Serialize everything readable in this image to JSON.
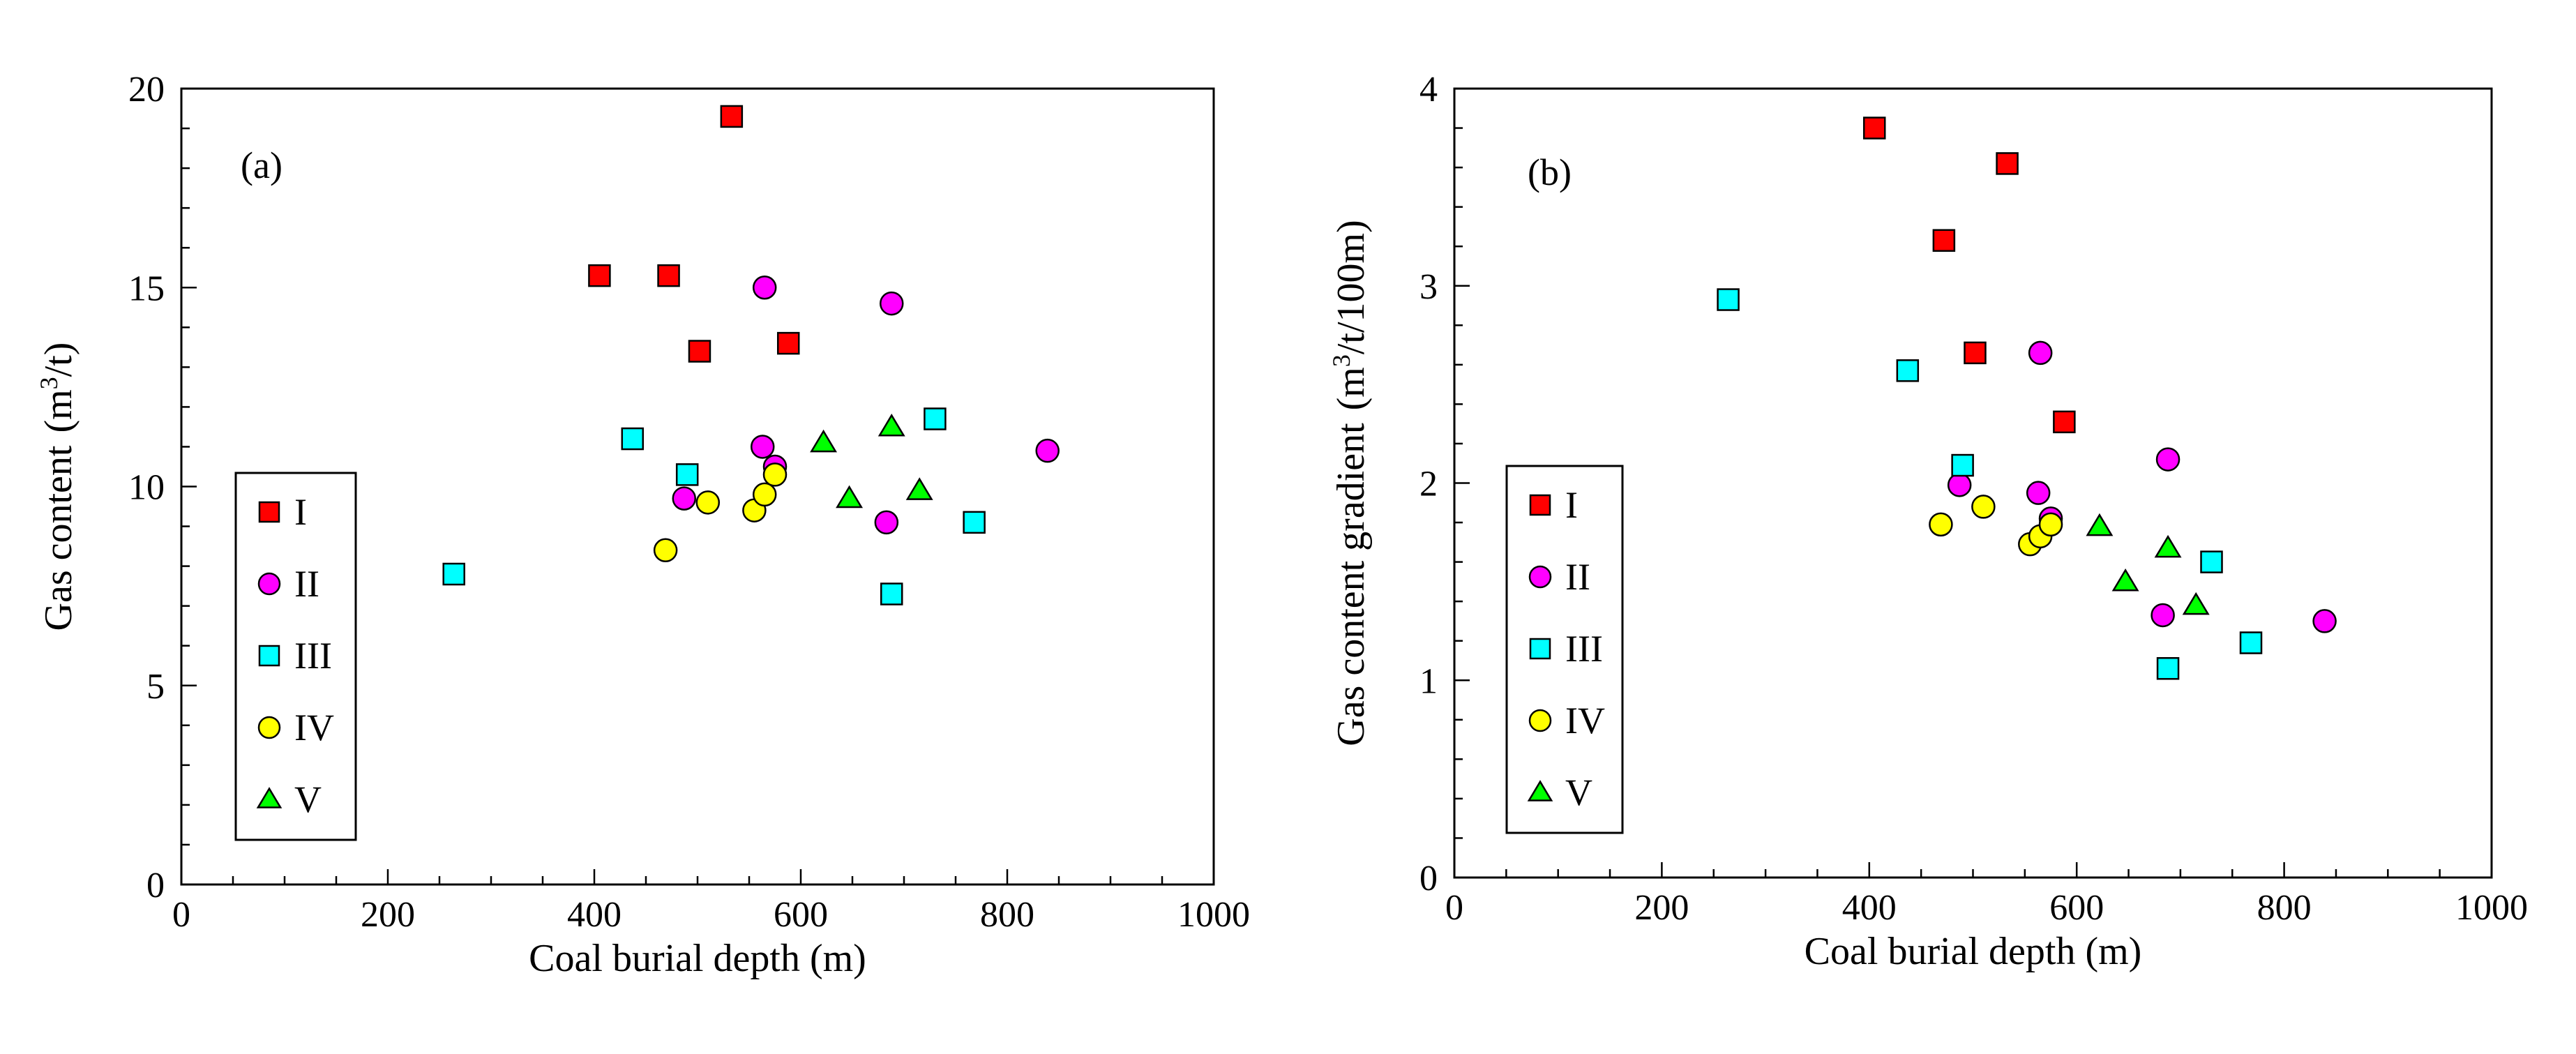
{
  "chart_data": [
    {
      "type": "scatter",
      "panel_label": "(a)",
      "xlabel": "Coal burial depth (m)",
      "ylabel": "Gas content",
      "ylabel_unit": {
        "open": "(m",
        "sup": "3",
        "close": "/t)"
      },
      "xlim": [
        0,
        1000
      ],
      "ylim": [
        0,
        20
      ],
      "x_ticks": [
        "0",
        "200",
        "400",
        "600",
        "800",
        "1000"
      ],
      "y_ticks": [
        "0",
        "5",
        "10",
        "15",
        "20"
      ],
      "legend_position": "lower-left",
      "series": [
        {
          "name": "I",
          "marker": "square",
          "color": "#ff0000",
          "points": [
            [
              405,
              15.3
            ],
            [
              472,
              15.3
            ],
            [
              502,
              13.4
            ],
            [
              533,
              19.3
            ],
            [
              588,
              13.6
            ]
          ]
        },
        {
          "name": "II",
          "marker": "circle",
          "color": "#ff00ff",
          "points": [
            [
              487,
              9.7
            ],
            [
              563,
              11.0
            ],
            [
              565,
              15.0
            ],
            [
              575,
              10.5
            ],
            [
              683,
              9.1
            ],
            [
              688,
              14.6
            ],
            [
              839,
              10.9
            ]
          ]
        },
        {
          "name": "III",
          "marker": "square",
          "color": "#00ffff",
          "points": [
            [
              264,
              7.8
            ],
            [
              437,
              11.2
            ],
            [
              490,
              10.3
            ],
            [
              688,
              7.3
            ],
            [
              730,
              11.7
            ],
            [
              768,
              9.1
            ]
          ]
        },
        {
          "name": "IV",
          "marker": "circle",
          "color": "#ffff00",
          "points": [
            [
              469,
              8.4
            ],
            [
              510,
              9.6
            ],
            [
              555,
              9.4
            ],
            [
              565,
              9.8
            ],
            [
              575,
              10.3
            ]
          ]
        },
        {
          "name": "V",
          "marker": "triangle",
          "color": "#00ff00",
          "points": [
            [
              622,
              11.1
            ],
            [
              647,
              9.7
            ],
            [
              688,
              11.5
            ],
            [
              715,
              9.9
            ]
          ]
        }
      ]
    },
    {
      "type": "scatter",
      "panel_label": "(b)",
      "xlabel": "Coal burial depth (m)",
      "ylabel": "Gas content  gradient",
      "ylabel_unit": {
        "open": "(m",
        "sup": "3",
        "close": "/t/100m)"
      },
      "xlim": [
        0,
        1000
      ],
      "ylim": [
        0,
        4
      ],
      "x_ticks": [
        "0",
        "200",
        "400",
        "600",
        "800",
        "1000"
      ],
      "y_ticks": [
        "0",
        "1",
        "2",
        "3",
        "4"
      ],
      "legend_position": "lower-left",
      "series": [
        {
          "name": "I",
          "marker": "square",
          "color": "#ff0000",
          "points": [
            [
              405,
              3.8
            ],
            [
              472,
              3.23
            ],
            [
              502,
              2.66
            ],
            [
              533,
              3.62
            ],
            [
              588,
              2.31
            ]
          ]
        },
        {
          "name": "II",
          "marker": "circle",
          "color": "#ff00ff",
          "points": [
            [
              487,
              1.99
            ],
            [
              563,
              1.95
            ],
            [
              565,
              2.66
            ],
            [
              575,
              1.82
            ],
            [
              683,
              1.33
            ],
            [
              688,
              2.12
            ],
            [
              839,
              1.3
            ]
          ]
        },
        {
          "name": "III",
          "marker": "square",
          "color": "#00ffff",
          "points": [
            [
              264,
              2.93
            ],
            [
              437,
              2.57
            ],
            [
              490,
              2.09
            ],
            [
              688,
              1.06
            ],
            [
              730,
              1.6
            ],
            [
              768,
              1.19
            ]
          ]
        },
        {
          "name": "IV",
          "marker": "circle",
          "color": "#ffff00",
          "points": [
            [
              469,
              1.79
            ],
            [
              510,
              1.88
            ],
            [
              555,
              1.69
            ],
            [
              565,
              1.73
            ],
            [
              575,
              1.79
            ]
          ]
        },
        {
          "name": "V",
          "marker": "triangle",
          "color": "#00ff00",
          "points": [
            [
              622,
              1.78
            ],
            [
              647,
              1.5
            ],
            [
              688,
              1.67
            ],
            [
              715,
              1.38
            ]
          ]
        }
      ]
    }
  ]
}
